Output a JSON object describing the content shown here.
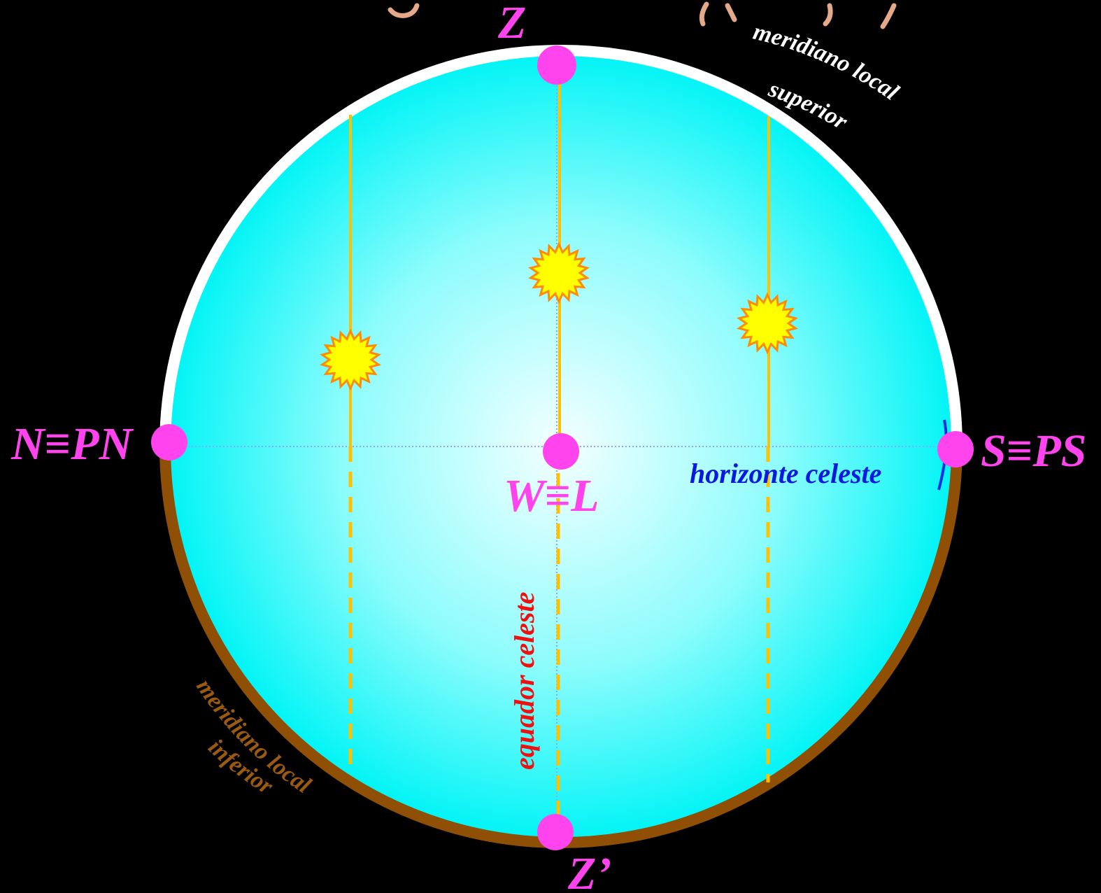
{
  "points": {
    "zenith": "Z",
    "nadir": "Z’",
    "north": "N≡PN",
    "south": "S≡PS",
    "west_east": "W≡L"
  },
  "circles": {
    "horizon": "horizonte celeste",
    "equator": "equador celeste"
  },
  "meridian": {
    "upper_line1": "meridiano local",
    "upper_line2": "superior",
    "lower_line1": "meridiano local",
    "lower_line2": "inferior"
  },
  "icons": [
    "sun-icon",
    "point-marker"
  ],
  "colors": {
    "background": "#000000",
    "sphere_edge": "#00f4f6",
    "sphere_center": "#f4ffff",
    "upper_meridian": "#ffffff",
    "lower_meridian": "#8f4f05",
    "markers": "#ff44ee",
    "sun_paths": "#ffc000",
    "sun_fill": "#ffff00",
    "sun_stroke": "#ff8c00"
  }
}
